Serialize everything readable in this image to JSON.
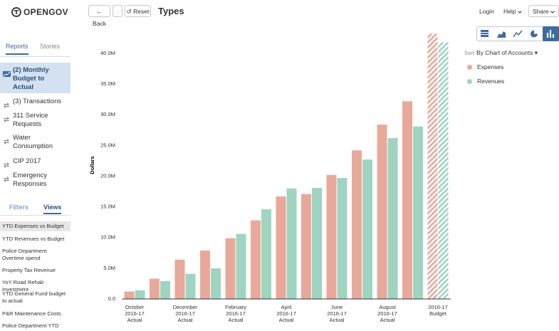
{
  "header": {
    "logo": "OPENGOV",
    "back": "Back",
    "reset": "Reset",
    "title": "Types",
    "login": "Login",
    "help": "Help",
    "share": "Share"
  },
  "sidebar": {
    "tabs": [
      "Reports",
      "Stories"
    ],
    "reports": [
      "(2) Monthly Budget to Actual",
      "(3) Transactions",
      "311 Service Requests",
      "Water Consumption",
      "CIP 2017",
      "Emergency Responses"
    ],
    "view_tabs": [
      "Filters",
      "Views"
    ],
    "views": [
      "YTD Expenses vs Budget",
      "YTD Revenues vs Budget",
      "Police Department Overtime spend",
      "Property Tax Revenue",
      "YoY Road Rehab Investment",
      "YTD General Fund budget to actual",
      "P&R Maintenance Costs",
      "Police Department YTD"
    ]
  },
  "legend_panel": {
    "sort_label": "Sort",
    "sort_value": "By Chart of Accounts"
  },
  "chart_data": {
    "type": "bar",
    "y_label": "Dollars",
    "categories": [
      "October 2016-17 Actual",
      null,
      "December 2016-17 Actual",
      null,
      "February 2016-17 Actual",
      null,
      "April 2016-17 Actual",
      null,
      "June 2016-17 Actual",
      null,
      "August 2016-17 Actual",
      null,
      "2016-17 Budget"
    ],
    "series": [
      {
        "name": "Expenses",
        "color": "#e8a99b",
        "values": [
          1200000,
          3300000,
          6400000,
          7900000,
          9900000,
          12800000,
          16700000,
          17100000,
          20200000,
          24200000,
          28400000,
          32200000,
          43200000
        ]
      },
      {
        "name": "Revenues",
        "color": "#9fd4c0",
        "values": [
          1400000,
          2900000,
          4100000,
          5000000,
          10600000,
          14600000,
          18000000,
          18100000,
          19700000,
          22700000,
          26200000,
          28100000,
          41800000
        ]
      }
    ],
    "ylim": [
      0,
      44000000
    ],
    "yticks": [
      {
        "value": 0,
        "label": "0.0"
      },
      {
        "value": 5000000,
        "label": "5.0M"
      },
      {
        "value": 10000000,
        "label": "10.0M"
      },
      {
        "value": 15000000,
        "label": "15.0M"
      },
      {
        "value": 20000000,
        "label": "20.0M"
      },
      {
        "value": 25000000,
        "label": "25.0M"
      },
      {
        "value": 30000000,
        "label": "30.0M"
      },
      {
        "value": 35000000,
        "label": "35.0M"
      },
      {
        "value": 40000000,
        "label": "40.0M"
      }
    ],
    "grid": false
  }
}
